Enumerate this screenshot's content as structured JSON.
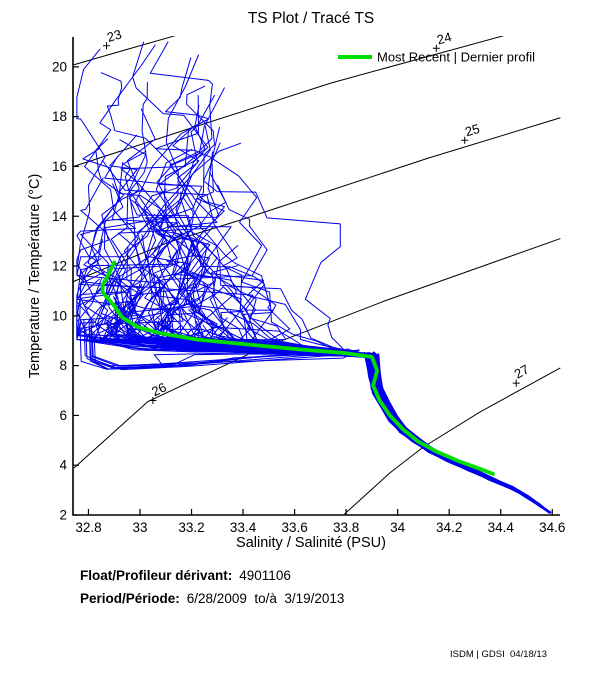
{
  "title": "TS Plot / Tracé TS",
  "legend": {
    "label": "Most Recent | Dernier profil"
  },
  "footer": {
    "float_label": "Float/Profileur dérivant:",
    "float_value": "4901106",
    "period_label": "Period/Période:",
    "period_value": "6/28/2009  to/à  3/19/2013",
    "stamp": "ISDM | GDSI  04/18/13"
  },
  "chart_data": {
    "type": "line",
    "title": "TS Plot / Tracé TS",
    "xlabel": "Salinity / Salinité (PSU)",
    "ylabel": "Temperature / Température (°C)",
    "xlim": [
      32.74,
      34.63
    ],
    "ylim": [
      2,
      21.2
    ],
    "x_ticks": [
      32.8,
      33,
      33.2,
      33.4,
      33.6,
      33.8,
      34,
      34.2,
      34.4,
      34.6
    ],
    "x_tick_labels": [
      "32.8",
      "33",
      "33.2",
      "33.4",
      "33.6",
      "33.8",
      "34",
      "34.2",
      "34.4",
      "34.6"
    ],
    "y_ticks": [
      2,
      4,
      6,
      8,
      10,
      12,
      14,
      16,
      18,
      20
    ],
    "y_tick_labels": [
      "2",
      "4",
      "6",
      "8",
      "10",
      "12",
      "14",
      "16",
      "18",
      "20"
    ],
    "grid": false,
    "legend_position": "top-right-inside",
    "colors": {
      "profiles": "#0000ee",
      "most_recent": "#00dd00",
      "contours": "#000000"
    },
    "profile_count": 115,
    "density_contours": [
      {
        "label": "23",
        "label_at": [
          32.87,
          20.85
        ],
        "points": [
          [
            32.742,
            20.08
          ],
          [
            32.95,
            20.7
          ],
          [
            33.135,
            21.25
          ]
        ]
      },
      {
        "label": "24",
        "label_at": [
          34.15,
          20.75
        ],
        "points": [
          [
            32.742,
            16.0
          ],
          [
            33.2,
            17.55
          ],
          [
            33.74,
            19.35
          ],
          [
            34.41,
            21.25
          ]
        ]
      },
      {
        "label": "25",
        "label_at": [
          34.26,
          17.05
        ],
        "points": [
          [
            32.742,
            11.38
          ],
          [
            33.11,
            12.95
          ],
          [
            33.39,
            13.85
          ],
          [
            34.12,
            16.34
          ],
          [
            34.63,
            17.95
          ]
        ]
      },
      {
        "label": "26",
        "label_at": [
          33.05,
          6.6
        ],
        "points": [
          [
            32.745,
            3.9
          ],
          [
            33.03,
            6.55
          ],
          [
            33.45,
            8.6
          ],
          [
            33.95,
            10.6
          ],
          [
            34.63,
            13.1
          ]
        ]
      },
      {
        "label": "27",
        "label_at": [
          34.46,
          7.3
        ],
        "points": [
          [
            33.795,
            2.05
          ],
          [
            33.97,
            3.69
          ],
          [
            34.1,
            4.73
          ],
          [
            34.32,
            6.14
          ],
          [
            34.63,
            7.9
          ]
        ]
      }
    ],
    "deep_core": [
      [
        33.9,
        8.3
      ],
      [
        33.91,
        7.6
      ],
      [
        33.92,
        7.0
      ],
      [
        33.95,
        6.4
      ],
      [
        33.98,
        5.9
      ],
      [
        34.02,
        5.4
      ],
      [
        34.07,
        5.0
      ],
      [
        34.13,
        4.6
      ],
      [
        34.2,
        4.2
      ],
      [
        34.28,
        3.85
      ],
      [
        34.36,
        3.45
      ],
      [
        34.44,
        3.1
      ],
      [
        34.5,
        2.75
      ],
      [
        34.55,
        2.4
      ],
      [
        34.59,
        2.1
      ]
    ],
    "most_recent_profile": [
      [
        32.9,
        12.15
      ],
      [
        32.88,
        11.7
      ],
      [
        32.855,
        11.25
      ],
      [
        32.855,
        10.95
      ],
      [
        32.9,
        10.4
      ],
      [
        32.93,
        9.95
      ],
      [
        32.99,
        9.55
      ],
      [
        33.08,
        9.3
      ],
      [
        33.22,
        9.05
      ],
      [
        33.42,
        8.85
      ],
      [
        33.62,
        8.65
      ],
      [
        33.8,
        8.5
      ],
      [
        33.9,
        8.35
      ],
      [
        33.92,
        7.8
      ],
      [
        33.905,
        7.2
      ],
      [
        33.93,
        6.6
      ],
      [
        33.97,
        6.0
      ],
      [
        34.02,
        5.45
      ],
      [
        34.08,
        4.95
      ],
      [
        34.15,
        4.55
      ],
      [
        34.24,
        4.15
      ],
      [
        34.32,
        3.85
      ],
      [
        34.37,
        3.65
      ]
    ]
  }
}
